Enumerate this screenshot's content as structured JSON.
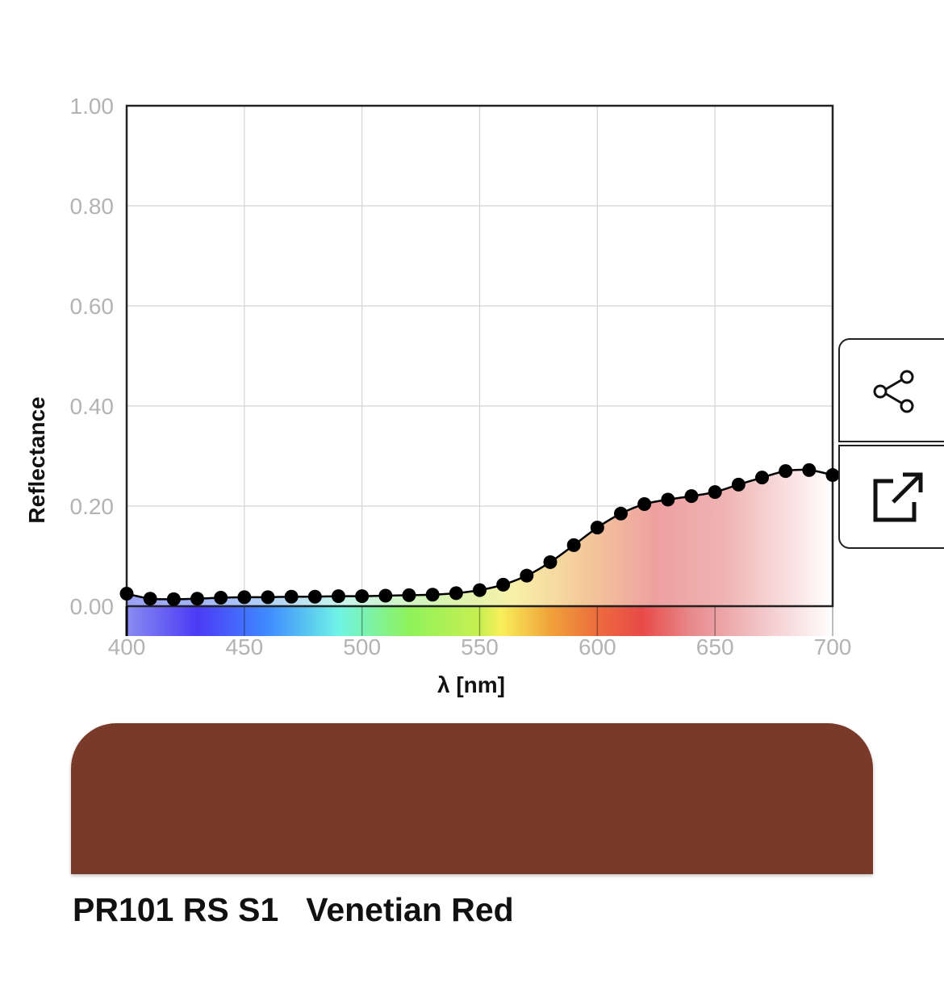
{
  "chart_data": {
    "type": "line",
    "xlabel": "λ [nm]",
    "ylabel": "Reflectance",
    "xlim": [
      400,
      700
    ],
    "ylim": [
      -0.06,
      1.0
    ],
    "x_ticks": [
      "400",
      "450",
      "500",
      "550",
      "600",
      "650",
      "700"
    ],
    "y_ticks": [
      "0.00",
      "0.20",
      "0.40",
      "0.60",
      "0.80",
      "1.00"
    ],
    "grid": true,
    "x": [
      400,
      410,
      420,
      430,
      440,
      450,
      460,
      470,
      480,
      490,
      500,
      510,
      520,
      530,
      540,
      550,
      560,
      570,
      580,
      590,
      600,
      610,
      620,
      630,
      640,
      650,
      660,
      670,
      680,
      690,
      700
    ],
    "series": [
      {
        "values": [
          0.025,
          0.015,
          0.014,
          0.015,
          0.017,
          0.018,
          0.018,
          0.019,
          0.019,
          0.02,
          0.02,
          0.021,
          0.022,
          0.023,
          0.026,
          0.032,
          0.043,
          0.061,
          0.088,
          0.122,
          0.157,
          0.185,
          0.204,
          0.213,
          0.22,
          0.228,
          0.243,
          0.257,
          0.27,
          0.272,
          0.262
        ]
      }
    ]
  },
  "swatch": {
    "color": "#7a3a2a"
  },
  "caption": {
    "code": "PR101 RS S1",
    "name": "Venetian Red"
  },
  "actions": {
    "share_icon": "share-icon",
    "open_icon": "open-external-icon"
  }
}
